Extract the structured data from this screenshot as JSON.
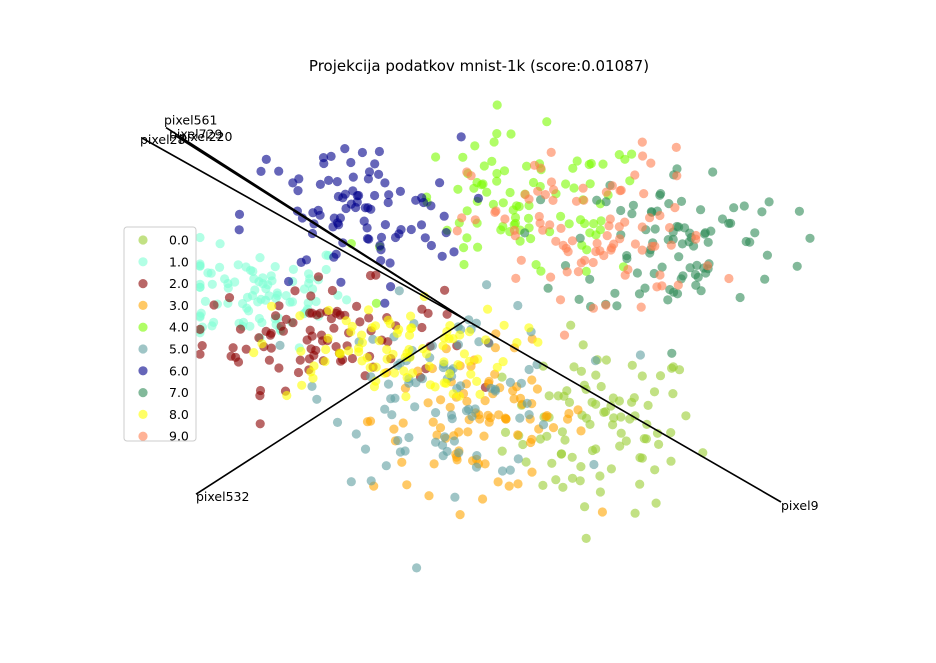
{
  "chart_data": {
    "type": "scatter",
    "title": "Projekcija podatkov mnist-1k (score:0.01087)",
    "xlabel": "",
    "ylabel": "",
    "axes_visible": false,
    "grid": false,
    "legend_position": "center-left",
    "origin": [
      0,
      0
    ],
    "xlim": [
      -1.2,
      1.2
    ],
    "ylim": [
      -1.0,
      1.0
    ],
    "axis_vectors": [
      {
        "name": "pixel561",
        "x": -1.0,
        "y": 0.74
      },
      {
        "name": "pixel729",
        "x": -0.97,
        "y": 0.71
      },
      {
        "name": "pixel220",
        "x": -0.95,
        "y": 0.7
      },
      {
        "name": "pixel28",
        "x": -1.08,
        "y": 0.7
      },
      {
        "name": "pixel532",
        "x": -0.9,
        "y": -0.67
      },
      {
        "name": "pixel9",
        "x": 1.05,
        "y": -0.7
      }
    ],
    "series": [
      {
        "name": "0.0",
        "color": "#9acd32",
        "center": [
          0.45,
          -0.42
        ],
        "spread": [
          0.16,
          0.16
        ],
        "n": 90
      },
      {
        "name": "1.0",
        "color": "#7fffd4",
        "center": [
          -0.7,
          0.1
        ],
        "spread": [
          0.16,
          0.1
        ],
        "n": 90
      },
      {
        "name": "2.0",
        "color": "#8b0000",
        "center": [
          -0.48,
          -0.06
        ],
        "spread": [
          0.2,
          0.1
        ],
        "n": 90
      },
      {
        "name": "3.0",
        "color": "#ffa500",
        "center": [
          0.05,
          -0.38
        ],
        "spread": [
          0.18,
          0.14
        ],
        "n": 90
      },
      {
        "name": "4.0",
        "color": "#7cfc00",
        "center": [
          0.2,
          0.42
        ],
        "spread": [
          0.22,
          0.14
        ],
        "n": 90
      },
      {
        "name": "5.0",
        "color": "#5f9ea0",
        "center": [
          -0.05,
          -0.27
        ],
        "spread": [
          0.2,
          0.17
        ],
        "n": 90
      },
      {
        "name": "6.0",
        "color": "#00008b",
        "center": [
          -0.38,
          0.4
        ],
        "spread": [
          0.18,
          0.15
        ],
        "n": 90
      },
      {
        "name": "7.0",
        "color": "#2e8b57",
        "center": [
          0.72,
          0.3
        ],
        "spread": [
          0.18,
          0.15
        ],
        "n": 90
      },
      {
        "name": "8.0",
        "color": "#ffff00",
        "center": [
          -0.28,
          -0.12
        ],
        "spread": [
          0.22,
          0.09
        ],
        "n": 90
      },
      {
        "name": "9.0",
        "color": "#ff7f50",
        "center": [
          0.42,
          0.32
        ],
        "spread": [
          0.2,
          0.17
        ],
        "n": 90
      }
    ]
  }
}
